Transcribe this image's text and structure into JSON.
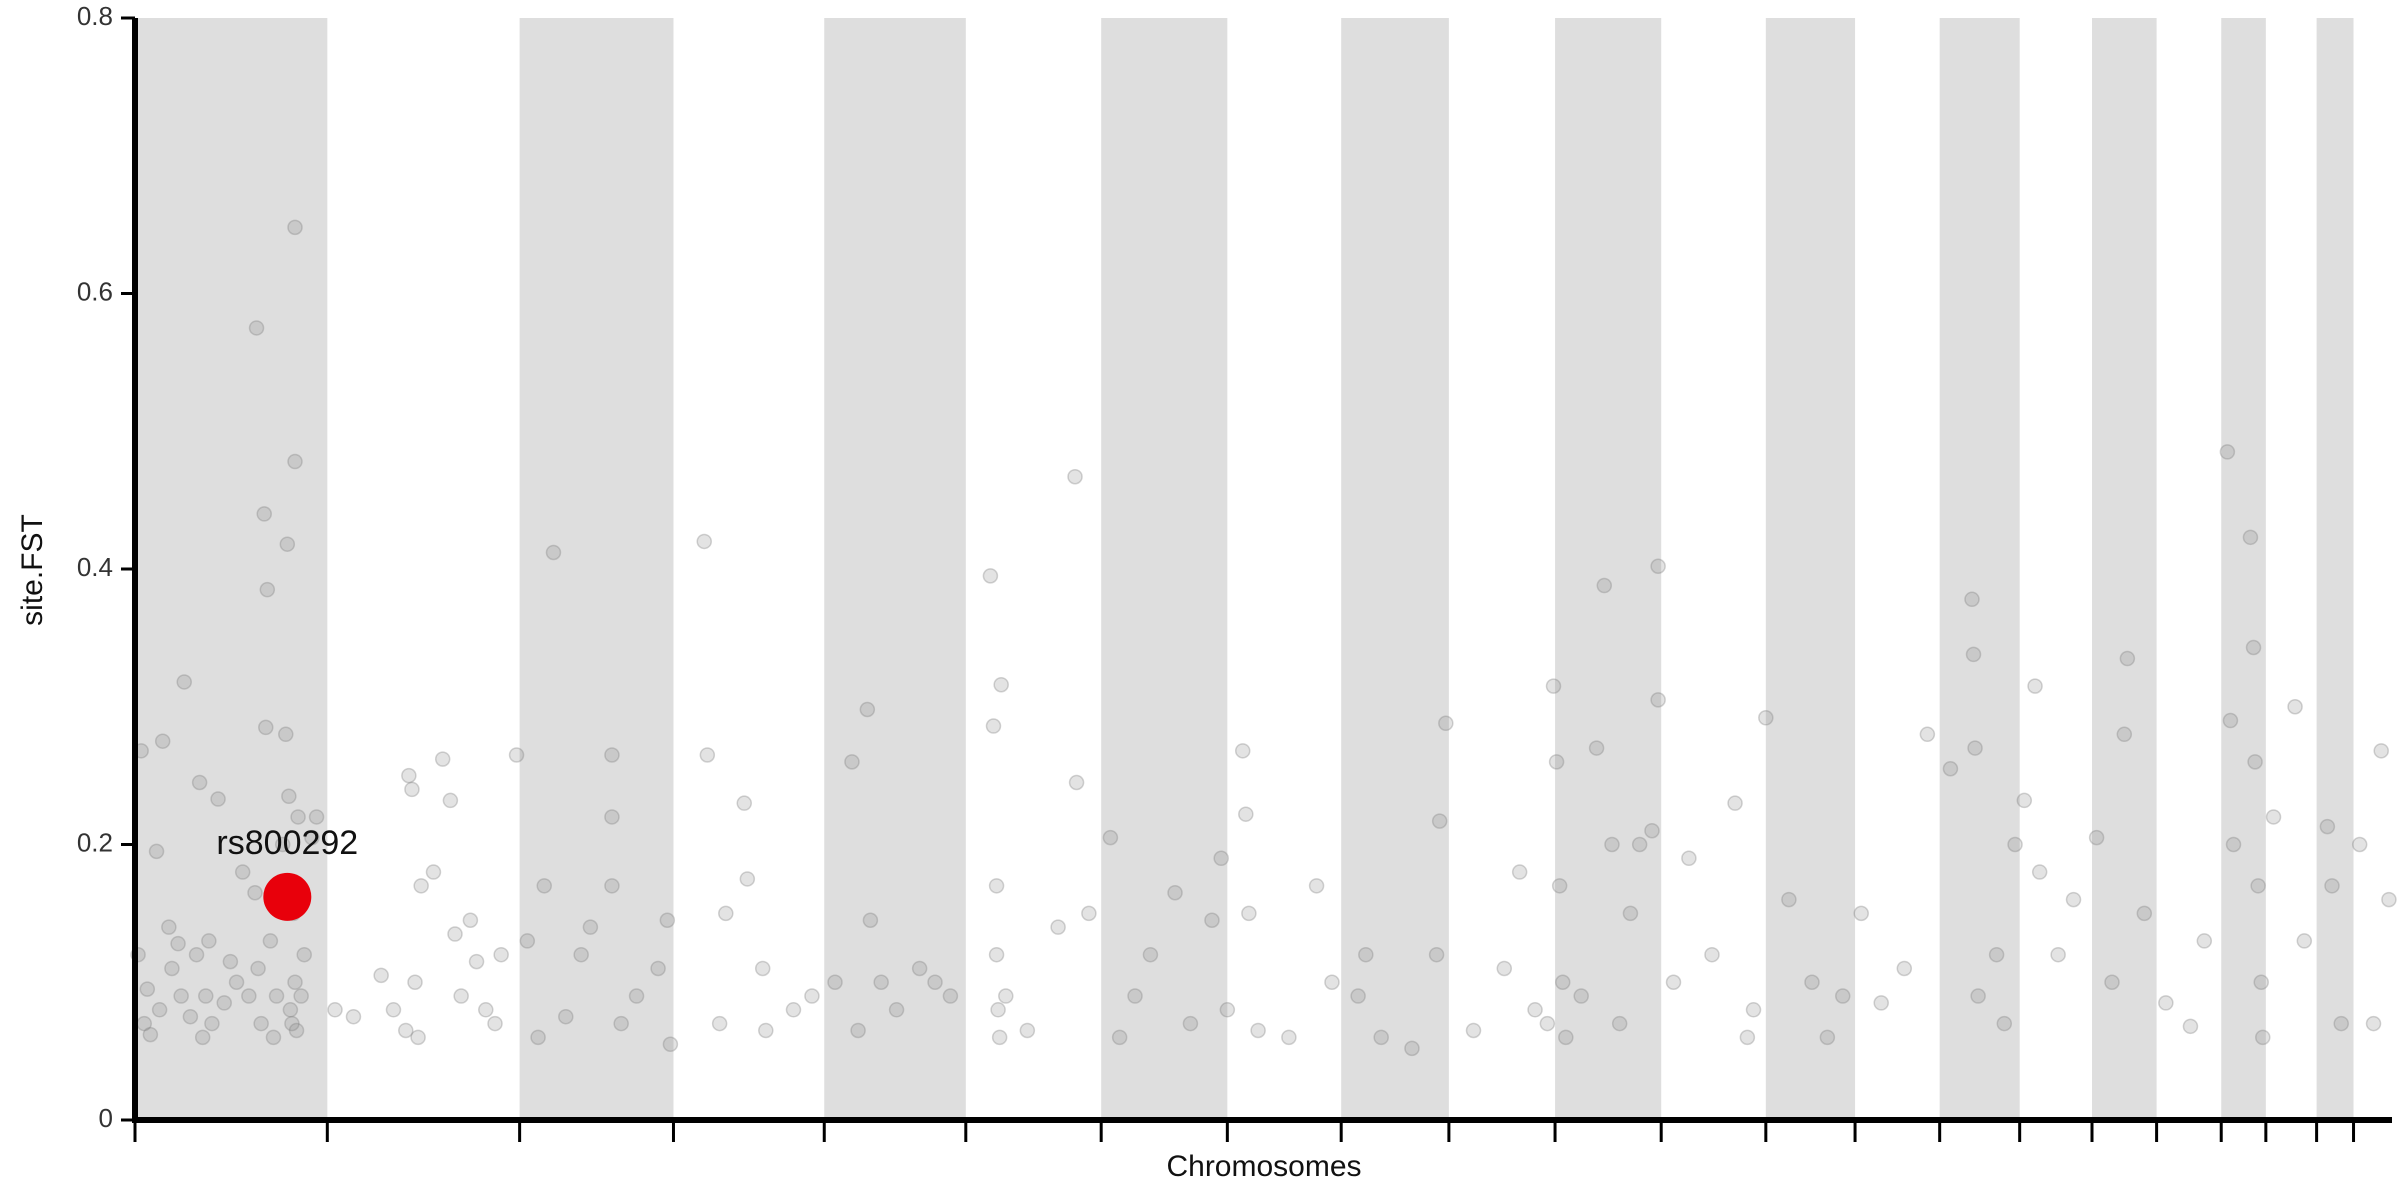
{
  "chart_data": {
    "type": "scatter",
    "xlabel": "Chromosomes",
    "ylabel": "site.FST",
    "xlim": [
      0,
      1467
    ],
    "ylim": [
      0,
      0.8
    ],
    "xticks": [
      0,
      125,
      250,
      350,
      448,
      540,
      628,
      710,
      784,
      854,
      923,
      992,
      1060,
      1118,
      1173,
      1225,
      1272,
      1314,
      1356,
      1385,
      1418,
      1442
    ],
    "yticks": [
      0,
      0.2,
      0.4,
      0.6,
      0.8
    ],
    "color": "#808080",
    "x": [
      2,
      4,
      6,
      8,
      10,
      14,
      16,
      18,
      22,
      24,
      28,
      30,
      32,
      36,
      40,
      42,
      44,
      46,
      48,
      50,
      54,
      58,
      62,
      66,
      70,
      74,
      78,
      79,
      80,
      82,
      84,
      85,
      86,
      88,
      90,
      92,
      96,
      98,
      99,
      100,
      101,
      102,
      103,
      104,
      104,
      104,
      105,
      106,
      108,
      110,
      115,
      118,
      130,
      142,
      160,
      168,
      176,
      178,
      180,
      182,
      184,
      186,
      194,
      200,
      205,
      208,
      212,
      218,
      222,
      228,
      234,
      238,
      248,
      255,
      262,
      266,
      272,
      280,
      290,
      296,
      310,
      310,
      310,
      316,
      326,
      340,
      346,
      348,
      370,
      372,
      380,
      384,
      396,
      398,
      408,
      410,
      428,
      440,
      455,
      466,
      470,
      476,
      478,
      485,
      495,
      510,
      520,
      530,
      556,
      558,
      560,
      560,
      561,
      562,
      563,
      566,
      580,
      600,
      611,
      612,
      620,
      634,
      640,
      650,
      660,
      676,
      686,
      700,
      706,
      710,
      720,
      722,
      724,
      730,
      750,
      768,
      778,
      795,
      800,
      810,
      830,
      846,
      852,
      848,
      870,
      890,
      900,
      910,
      918,
      922,
      924,
      926,
      928,
      930,
      940,
      950,
      955,
      960,
      965,
      972,
      978,
      986,
      990,
      990,
      1000,
      1010,
      1025,
      1040,
      1048,
      1052,
      1060,
      1075,
      1090,
      1100,
      1110,
      1122,
      1135,
      1150,
      1165,
      1180,
      1194,
      1195,
      1196,
      1198,
      1210,
      1215,
      1222,
      1228,
      1235,
      1238,
      1250,
      1260,
      1275,
      1285,
      1293,
      1295,
      1306,
      1320,
      1336,
      1345,
      1360,
      1362,
      1364,
      1375,
      1377,
      1378,
      1380,
      1382,
      1383,
      1390,
      1404,
      1410,
      1425,
      1428,
      1434,
      1446,
      1455,
      1460,
      1465
    ],
    "values": [
      0.12,
      0.268,
      0.07,
      0.095,
      0.062,
      0.195,
      0.08,
      0.275,
      0.14,
      0.11,
      0.128,
      0.09,
      0.318,
      0.075,
      0.12,
      0.245,
      0.06,
      0.09,
      0.13,
      0.07,
      0.233,
      0.085,
      0.115,
      0.1,
      0.18,
      0.09,
      0.165,
      0.575,
      0.11,
      0.07,
      0.44,
      0.285,
      0.385,
      0.13,
      0.06,
      0.09,
      0.2,
      0.28,
      0.418,
      0.235,
      0.08,
      0.07,
      0.15,
      0.648,
      0.478,
      0.1,
      0.065,
      0.22,
      0.09,
      0.12,
      0.205,
      0.22,
      0.08,
      0.075,
      0.105,
      0.08,
      0.065,
      0.25,
      0.24,
      0.1,
      0.06,
      0.17,
      0.18,
      0.262,
      0.232,
      0.135,
      0.09,
      0.145,
      0.115,
      0.08,
      0.07,
      0.12,
      0.265,
      0.13,
      0.06,
      0.17,
      0.412,
      0.075,
      0.12,
      0.14,
      0.265,
      0.22,
      0.17,
      0.07,
      0.09,
      0.11,
      0.145,
      0.055,
      0.42,
      0.265,
      0.07,
      0.15,
      0.23,
      0.175,
      0.11,
      0.065,
      0.08,
      0.09,
      0.1,
      0.26,
      0.065,
      0.298,
      0.145,
      0.1,
      0.08,
      0.11,
      0.1,
      0.09,
      0.395,
      0.286,
      0.17,
      0.12,
      0.08,
      0.06,
      0.316,
      0.09,
      0.065,
      0.14,
      0.467,
      0.245,
      0.15,
      0.205,
      0.06,
      0.09,
      0.12,
      0.165,
      0.07,
      0.145,
      0.19,
      0.08,
      0.268,
      0.222,
      0.15,
      0.065,
      0.06,
      0.17,
      0.1,
      0.09,
      0.12,
      0.06,
      0.052,
      0.12,
      0.288,
      0.217,
      0.065,
      0.11,
      0.18,
      0.08,
      0.07,
      0.315,
      0.26,
      0.17,
      0.1,
      0.06,
      0.09,
      0.27,
      0.388,
      0.2,
      0.07,
      0.15,
      0.2,
      0.21,
      0.402,
      0.305,
      0.1,
      0.19,
      0.12,
      0.23,
      0.06,
      0.08,
      0.292,
      0.16,
      0.1,
      0.06,
      0.09,
      0.15,
      0.085,
      0.11,
      0.28,
      0.255,
      0.378,
      0.338,
      0.27,
      0.09,
      0.12,
      0.07,
      0.2,
      0.232,
      0.315,
      0.18,
      0.12,
      0.16,
      0.205,
      0.1,
      0.28,
      0.335,
      0.15,
      0.085,
      0.068,
      0.13,
      0.485,
      0.29,
      0.2,
      0.423,
      0.343,
      0.26,
      0.17,
      0.1,
      0.06,
      0.22,
      0.3,
      0.13,
      0.213,
      0.17,
      0.07,
      0.2,
      0.07,
      0.268,
      0.16
    ],
    "highlight": {
      "label": "rs800292",
      "x": 99,
      "value": 0.162,
      "color": "#e8000b"
    }
  }
}
